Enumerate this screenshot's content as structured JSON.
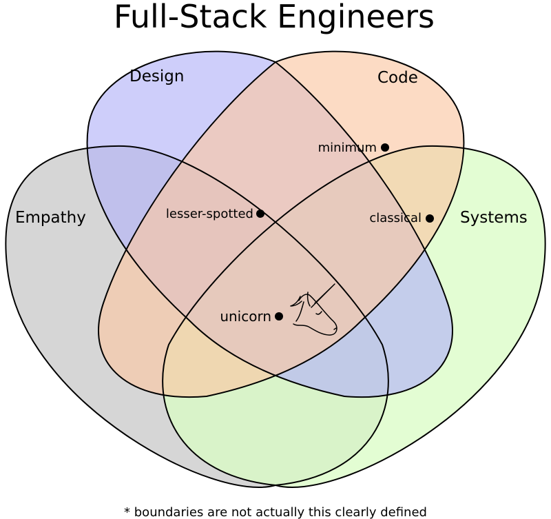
{
  "title": "Full-Stack Engineers",
  "footnote": "* boundaries are not actually this clearly defined",
  "sets": [
    {
      "key": "empathy",
      "label": "Empathy",
      "color": "#c8c8c8"
    },
    {
      "key": "design",
      "label": "Design",
      "color": "#b4b4f8"
    },
    {
      "key": "code",
      "label": "Code",
      "color": "#fbc7a4"
    },
    {
      "key": "systems",
      "label": "Systems",
      "color": "#d9fcc4"
    }
  ],
  "points": {
    "minimum": "minimum",
    "lesser_spotted": "lesser-spotted",
    "classical": "classical",
    "unicorn": "unicorn"
  },
  "icons": {
    "unicorn": "unicorn-head-icon"
  }
}
